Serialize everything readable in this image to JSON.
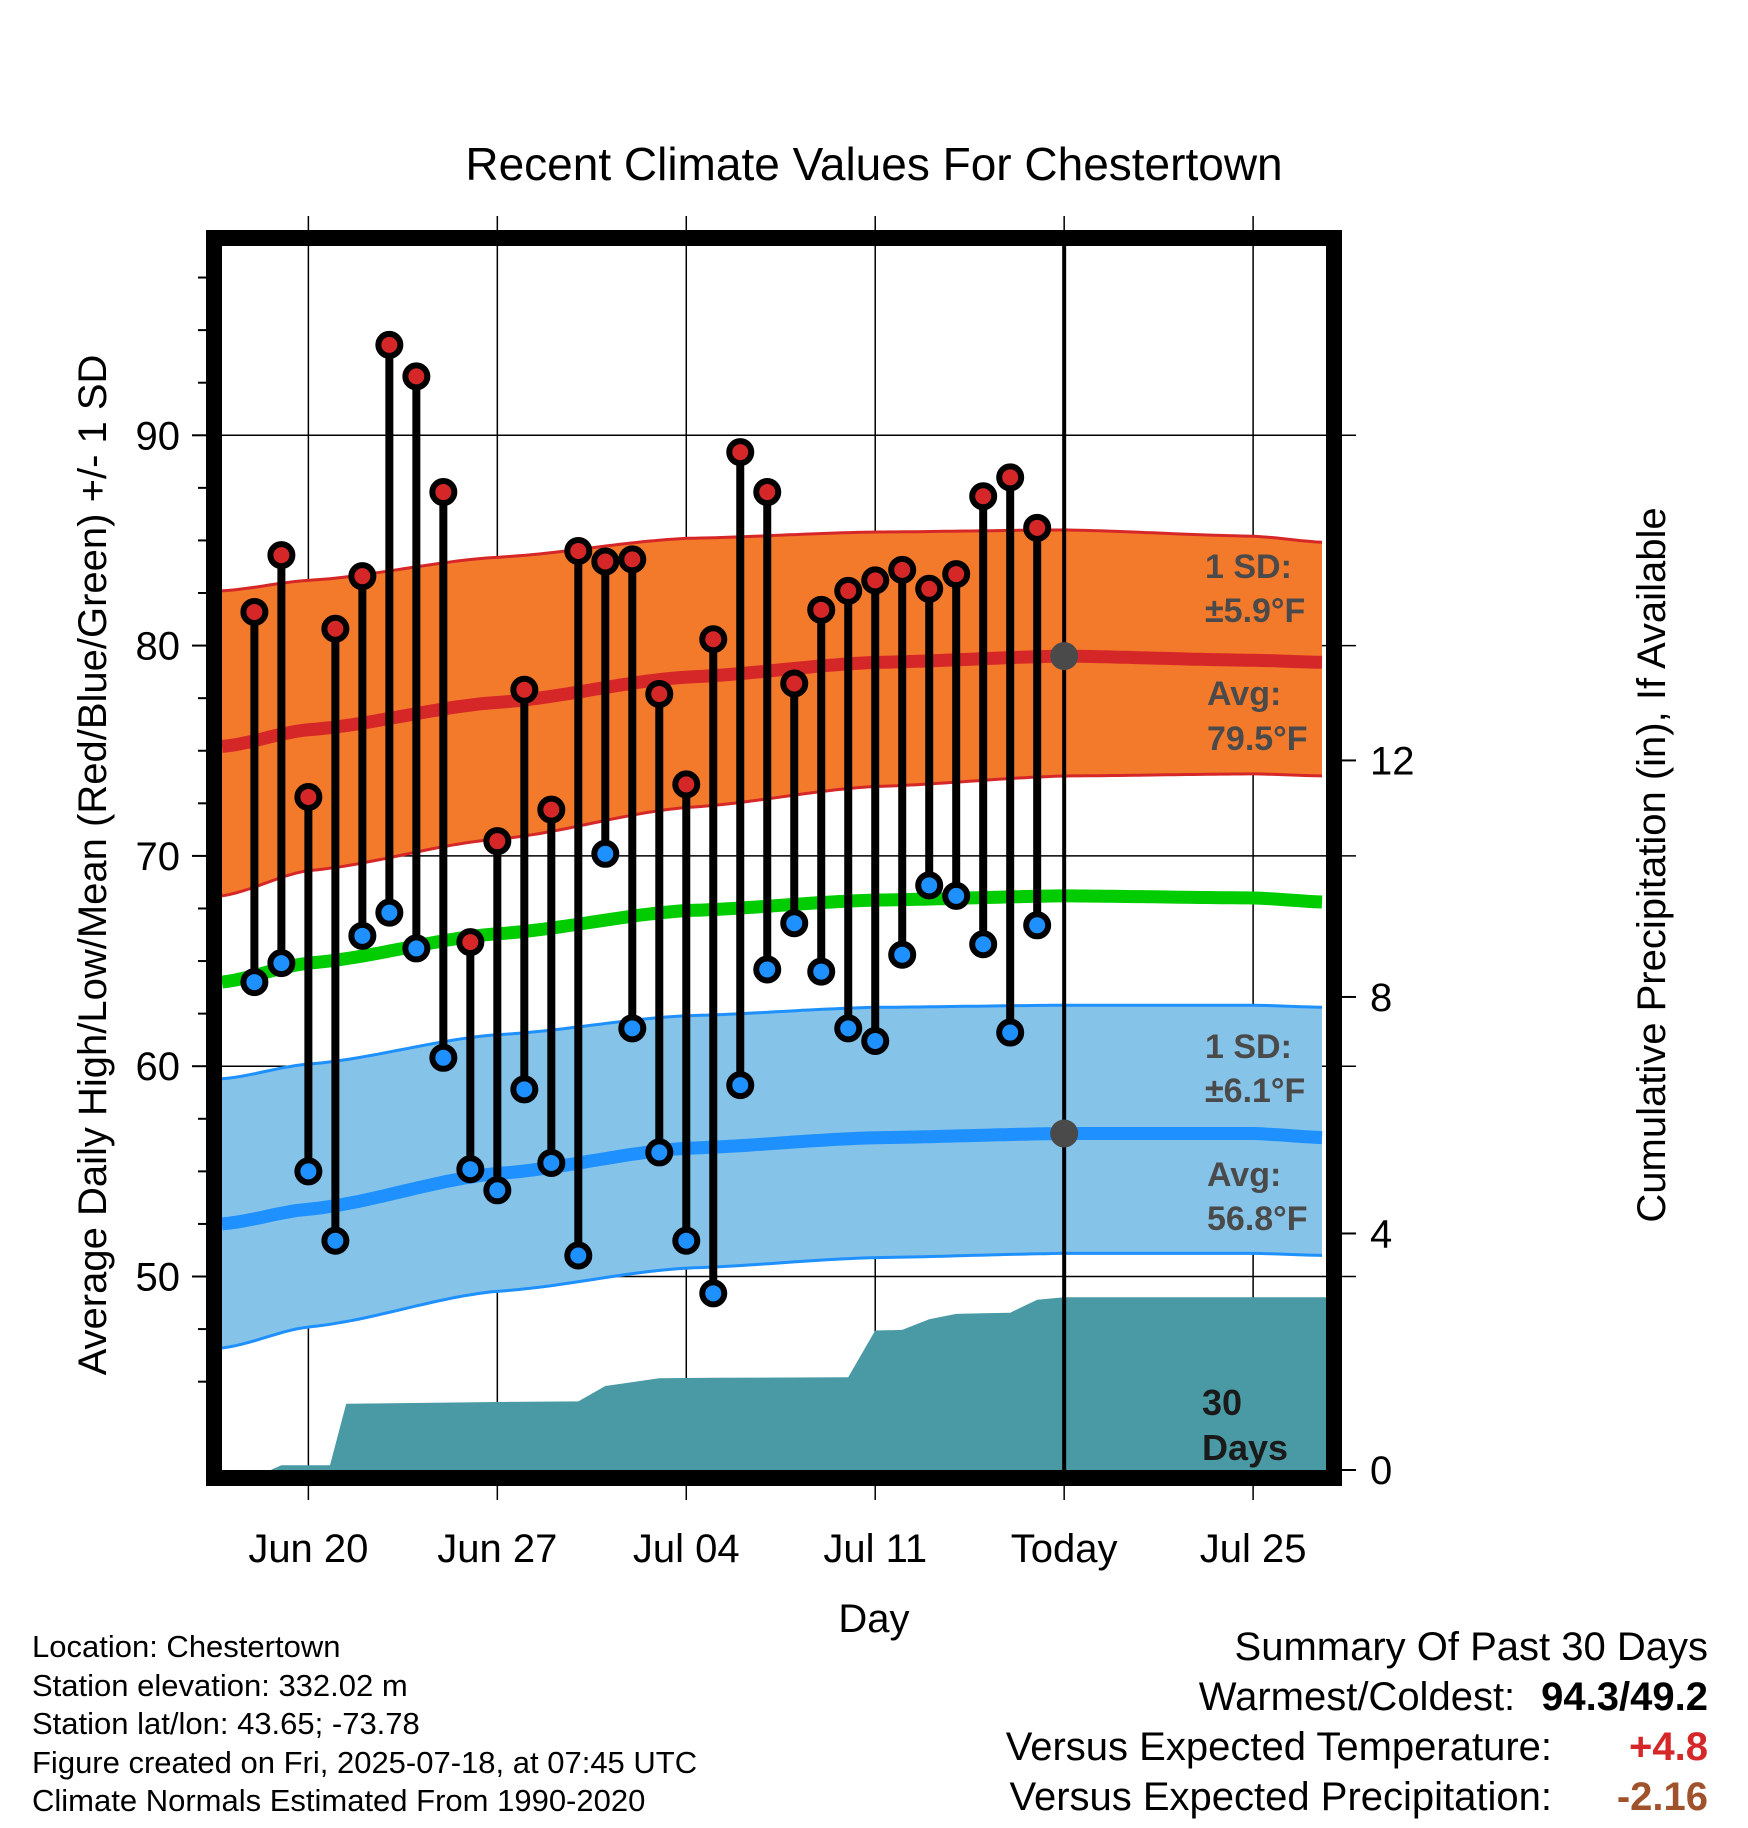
{
  "chart_data": {
    "type": "line",
    "title": "Recent Climate Values For Chestertown",
    "xlabel": "Day",
    "ylabel": "Average Daily High/Low/Mean (Red/Blue/Green) +/- 1 SD",
    "y2label": "Cumulative Precipitation (in), If Available",
    "ylim": [
      40.8,
      99
    ],
    "y2lim": [
      0,
      20.7
    ],
    "y_ticks": [
      "50",
      "60",
      "70",
      "80",
      "90"
    ],
    "y2_ticks": [
      "0",
      "4",
      "8",
      "12"
    ],
    "x_tick_labels": [
      "Jun 20",
      "Jun 27",
      "Jul 04",
      "Jul 11",
      "Today",
      "Jul 25"
    ],
    "x_tick_days": [
      20,
      27,
      34,
      41,
      48,
      55
    ],
    "x_range_days": [
      16.8,
      57.7
    ],
    "today_day": 48,
    "grid": true,
    "daily_obs": {
      "days": [
        18,
        19,
        20,
        21,
        22,
        23,
        24,
        25,
        26,
        27,
        28,
        29,
        30,
        31,
        32,
        33,
        34,
        35,
        36,
        37,
        38,
        39,
        40,
        41,
        42,
        43,
        44,
        45,
        46,
        47
      ],
      "highs": [
        81.6,
        84.3,
        72.8,
        80.8,
        83.3,
        94.3,
        92.8,
        87.3,
        65.9,
        70.7,
        77.9,
        72.2,
        84.5,
        84.0,
        84.1,
        77.7,
        73.4,
        80.3,
        89.2,
        87.3,
        78.2,
        81.7,
        82.6,
        83.1,
        83.6,
        82.7,
        83.4,
        87.1,
        88.0,
        85.6
      ],
      "lows": [
        64.0,
        64.9,
        55.0,
        51.7,
        66.2,
        67.3,
        65.6,
        60.4,
        55.1,
        54.1,
        58.9,
        55.4,
        51.0,
        70.1,
        61.8,
        55.9,
        51.7,
        49.2,
        59.1,
        64.6,
        66.8,
        64.5,
        61.8,
        61.2,
        65.3,
        68.6,
        68.1,
        65.8,
        61.6,
        66.7
      ]
    },
    "series": [
      {
        "name": "Avg High",
        "x": [
          16.8,
          20,
          27,
          34,
          41,
          48,
          55,
          57.7
        ],
        "values": [
          75.2,
          76.0,
          77.3,
          78.5,
          79.2,
          79.5,
          79.3,
          79.2
        ],
        "color": "#d62728"
      },
      {
        "name": "High +1 SD",
        "x": [
          16.8,
          20,
          27,
          34,
          41,
          48,
          55,
          57.7
        ],
        "values": [
          82.6,
          83.1,
          84.2,
          85.1,
          85.4,
          85.5,
          85.2,
          84.9
        ],
        "color": "#d62728"
      },
      {
        "name": "High -1 SD",
        "x": [
          16.8,
          20,
          27,
          34,
          41,
          48,
          55,
          57.7
        ],
        "values": [
          68.1,
          69.3,
          70.8,
          72.3,
          73.3,
          73.8,
          73.9,
          73.8
        ],
        "color": "#d62728"
      },
      {
        "name": "Avg Mean",
        "x": [
          16.8,
          20,
          27,
          34,
          41,
          48,
          55,
          57.7
        ],
        "values": [
          64.0,
          64.9,
          66.3,
          67.4,
          67.9,
          68.1,
          68.0,
          67.8
        ],
        "color": "#00cc00"
      },
      {
        "name": "Avg Low",
        "x": [
          16.8,
          20,
          27,
          34,
          41,
          48,
          55,
          57.7
        ],
        "values": [
          52.5,
          53.2,
          54.9,
          56.1,
          56.6,
          56.8,
          56.8,
          56.6
        ],
        "color": "#1e90ff"
      },
      {
        "name": "Low +1 SD",
        "x": [
          16.8,
          20,
          27,
          34,
          41,
          48,
          55,
          57.7
        ],
        "values": [
          59.4,
          60.1,
          61.5,
          62.4,
          62.8,
          62.9,
          62.9,
          62.8
        ],
        "color": "#1e90ff"
      },
      {
        "name": "Low -1 SD",
        "x": [
          16.8,
          20,
          27,
          34,
          41,
          48,
          55,
          57.7
        ],
        "values": [
          46.6,
          47.6,
          49.3,
          50.4,
          50.9,
          51.1,
          51.1,
          51.0
        ],
        "color": "#1e90ff"
      }
    ],
    "precip_cumulative": {
      "x": [
        16.8,
        18.6,
        19.0,
        20.8,
        21.4,
        27.0,
        30.0,
        31.0,
        33.0,
        35.0,
        40.0,
        41.0,
        42.0,
        43.0,
        44.0,
        45.0,
        46.0,
        47.0,
        48.0,
        57.7
      ],
      "values": [
        0.0,
        0.0,
        0.08,
        0.08,
        1.12,
        1.15,
        1.16,
        1.42,
        1.55,
        1.56,
        1.57,
        2.36,
        2.37,
        2.55,
        2.64,
        2.65,
        2.66,
        2.88,
        2.92,
        2.92
      ],
      "color": "#4a9aa5"
    },
    "annotations": {
      "high_sd_label": "1 SD:",
      "high_sd_value": "±5.9°F",
      "high_avg_label": "Avg:",
      "high_avg_value": "79.5°F",
      "low_sd_label": "1 SD:",
      "low_sd_value": "±6.1°F",
      "low_avg_label": "Avg:",
      "low_avg_value": "56.8°F",
      "precip_label_1": "30",
      "precip_label_2": "Days"
    }
  },
  "info": {
    "location": "Location: Chestertown",
    "elevation": "Station elevation: 332.02 m",
    "latlon": "Station lat/lon: 43.65; -73.78",
    "created": "Figure created on Fri, 2025-07-18, at 07:45 UTC",
    "normals": "Climate Normals Estimated From 1990-2020"
  },
  "summary": {
    "title": "Summary Of Past 30 Days",
    "warm_cold_label": "Warmest/Coldest:",
    "warm_cold_value": "94.3/49.2",
    "temp_label": "Versus Expected Temperature:",
    "temp_value": "+4.8",
    "temp_color": "#d62728",
    "precip_label": "Versus Expected Precipitation:",
    "precip_value": "-2.16",
    "precip_color": "#a0522d"
  },
  "colors": {
    "high_band": "#f47a2b",
    "low_band": "#85c3e8",
    "marker_high": "#d62728",
    "marker_low": "#1e90ff",
    "today_marker": "#4a4a4a"
  }
}
